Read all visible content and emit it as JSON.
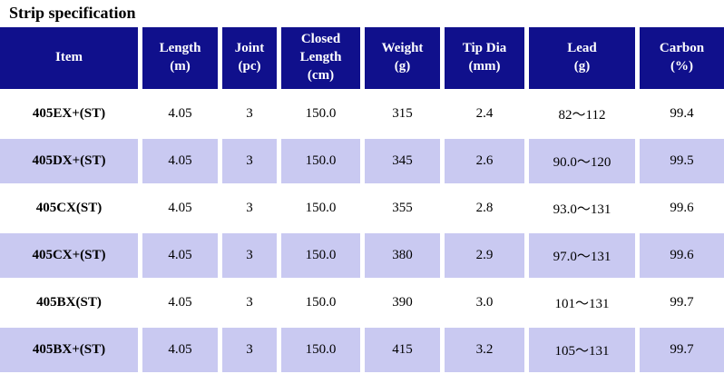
{
  "title": "Strip specification",
  "colors": {
    "header_bg": "#10108C",
    "header_text": "#FFFFFF",
    "row_bg": "#FFFFFF",
    "row_alt_bg": "#C9C9F1",
    "text": "#000000"
  },
  "table": {
    "headers": [
      "Item",
      "Length\n(m)",
      "Joint\n(pc)",
      "Closed\nLength\n(cm)",
      "Weight\n(g)",
      "Tip Dia\n(mm)",
      "Lead\n(g)",
      "Carbon\n(%)"
    ],
    "rows": [
      {
        "item": "405EX+(ST)",
        "length": "4.05",
        "joint": "3",
        "closed_length": "150.0",
        "weight": "315",
        "tip_dia": "2.4",
        "lead": "82〜112",
        "carbon": "99.4"
      },
      {
        "item": "405DX+(ST)",
        "length": "4.05",
        "joint": "3",
        "closed_length": "150.0",
        "weight": "345",
        "tip_dia": "2.6",
        "lead": "90.0〜120",
        "carbon": "99.5"
      },
      {
        "item": "405CX(ST)",
        "length": "4.05",
        "joint": "3",
        "closed_length": "150.0",
        "weight": "355",
        "tip_dia": "2.8",
        "lead": "93.0〜131",
        "carbon": "99.6"
      },
      {
        "item": "405CX+(ST)",
        "length": "4.05",
        "joint": "3",
        "closed_length": "150.0",
        "weight": "380",
        "tip_dia": "2.9",
        "lead": "97.0〜131",
        "carbon": "99.6"
      },
      {
        "item": "405BX(ST)",
        "length": "4.05",
        "joint": "3",
        "closed_length": "150.0",
        "weight": "390",
        "tip_dia": "3.0",
        "lead": "101〜131",
        "carbon": "99.7"
      },
      {
        "item": "405BX+(ST)",
        "length": "4.05",
        "joint": "3",
        "closed_length": "150.0",
        "weight": "415",
        "tip_dia": "3.2",
        "lead": "105〜131",
        "carbon": "99.7"
      }
    ]
  }
}
